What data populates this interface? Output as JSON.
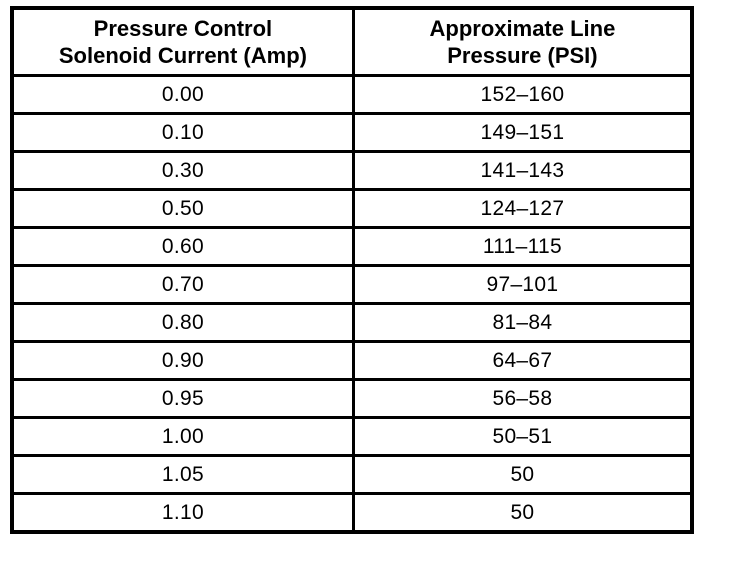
{
  "table": {
    "headers": [
      {
        "line1": "Pressure Control",
        "line2": "Solenoid Current (Amp)"
      },
      {
        "line1": "Approximate Line",
        "line2": "Pressure (PSI)"
      }
    ],
    "rows": [
      [
        "0.00",
        "152–160"
      ],
      [
        "0.10",
        "149–151"
      ],
      [
        "0.30",
        "141–143"
      ],
      [
        "0.50",
        "124–127"
      ],
      [
        "0.60",
        "111–115"
      ],
      [
        "0.70",
        "97–101"
      ],
      [
        "0.80",
        "81–84"
      ],
      [
        "0.90",
        "64–67"
      ],
      [
        "0.95",
        "56–58"
      ],
      [
        "1.00",
        "50–51"
      ],
      [
        "1.05",
        "50"
      ],
      [
        "1.10",
        "50"
      ]
    ],
    "colors": {
      "border": "#000000",
      "text": "#000000",
      "background": "#ffffff"
    }
  }
}
